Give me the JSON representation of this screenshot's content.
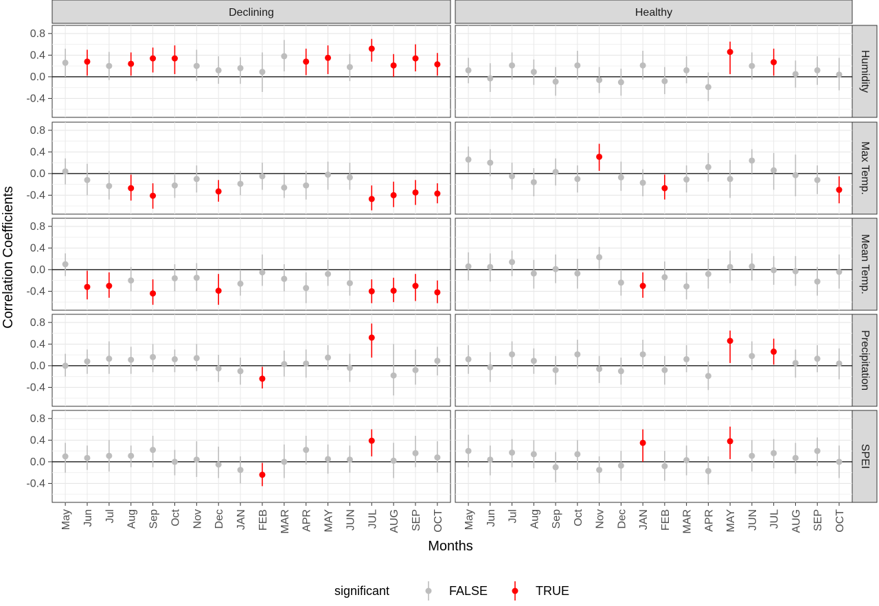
{
  "chart_data": {
    "type": "scatter",
    "title": "",
    "xlabel": "Months",
    "ylabel": "Correlation Coefficients",
    "ylim": [
      -0.75,
      0.95
    ],
    "yticks": [
      -0.4,
      0.0,
      0.4,
      0.8
    ],
    "ytick_labels": [
      "-0.4",
      "0.0",
      "0.4",
      "0.8"
    ],
    "grid": true,
    "columns": [
      "Declining",
      "Healthy"
    ],
    "rows": [
      "Humidity",
      "Max Temp.",
      "Mean Temp.",
      "Precipitation",
      "SPEI"
    ],
    "x_categories": [
      "May",
      "Jun",
      "Jul",
      "Aug",
      "Sep",
      "Oct",
      "Nov",
      "Dec",
      "JAN",
      "FEB",
      "MAR",
      "APR",
      "MAY",
      "JUN",
      "JUL",
      "AUG",
      "SEP",
      "OCT"
    ],
    "legend": {
      "title": "significant",
      "position": "bottom",
      "entries": [
        {
          "label": "FALSE",
          "color": "#bdbdbd"
        },
        {
          "label": "TRUE",
          "color": "#ff0000"
        }
      ]
    },
    "colors": {
      "false": "#bdbdbd",
      "true": "#ff0000",
      "strip": "#d9d9d9",
      "zero_line": "#000000"
    },
    "panels": {
      "Declining": {
        "Humidity": {
          "est": [
            0.26,
            0.28,
            0.2,
            0.24,
            0.34,
            0.34,
            0.2,
            0.12,
            0.16,
            0.09,
            0.38,
            0.28,
            0.35,
            0.18,
            0.52,
            0.21,
            0.34,
            0.23
          ],
          "lo": [
            0.0,
            0.02,
            -0.06,
            0.02,
            0.08,
            0.05,
            -0.08,
            -0.13,
            -0.13,
            -0.28,
            0.1,
            0.03,
            0.05,
            -0.08,
            0.28,
            0.0,
            0.1,
            0.02
          ],
          "hi": [
            0.52,
            0.5,
            0.46,
            0.45,
            0.54,
            0.58,
            0.5,
            0.38,
            0.36,
            0.45,
            0.68,
            0.52,
            0.58,
            0.42,
            0.7,
            0.42,
            0.6,
            0.44
          ],
          "sig": [
            false,
            true,
            false,
            true,
            true,
            true,
            false,
            false,
            false,
            false,
            false,
            true,
            true,
            false,
            true,
            true,
            true,
            true
          ]
        },
        "Max Temp.": {
          "est": [
            0.04,
            -0.12,
            -0.23,
            -0.27,
            -0.41,
            -0.22,
            -0.1,
            -0.33,
            -0.19,
            -0.05,
            -0.26,
            -0.22,
            -0.02,
            -0.07,
            -0.47,
            -0.4,
            -0.35,
            -0.37
          ],
          "lo": [
            -0.2,
            -0.4,
            -0.48,
            -0.5,
            -0.65,
            -0.45,
            -0.35,
            -0.52,
            -0.4,
            -0.3,
            -0.45,
            -0.48,
            -0.3,
            -0.3,
            -0.68,
            -0.62,
            -0.58,
            -0.55
          ],
          "hi": [
            0.28,
            0.18,
            0.05,
            -0.02,
            -0.18,
            0.0,
            0.15,
            -0.12,
            0.05,
            0.2,
            -0.02,
            0.05,
            0.22,
            0.2,
            -0.22,
            -0.15,
            -0.12,
            -0.18
          ],
          "sig": [
            false,
            false,
            false,
            true,
            true,
            false,
            false,
            true,
            false,
            false,
            false,
            false,
            false,
            false,
            true,
            true,
            true,
            true
          ]
        },
        "Mean Temp.": {
          "est": [
            0.1,
            -0.32,
            -0.3,
            -0.2,
            -0.44,
            -0.16,
            -0.15,
            -0.39,
            -0.26,
            -0.05,
            -0.17,
            -0.34,
            -0.08,
            -0.25,
            -0.4,
            -0.39,
            -0.3,
            -0.42
          ],
          "lo": [
            -0.12,
            -0.55,
            -0.52,
            -0.4,
            -0.65,
            -0.4,
            -0.4,
            -0.65,
            -0.48,
            -0.3,
            -0.4,
            -0.62,
            -0.3,
            -0.48,
            -0.62,
            -0.6,
            -0.58,
            -0.62
          ],
          "hi": [
            0.3,
            -0.02,
            -0.05,
            0.05,
            -0.18,
            0.1,
            0.12,
            -0.08,
            0.0,
            0.28,
            0.1,
            -0.05,
            0.18,
            0.0,
            -0.18,
            -0.15,
            -0.08,
            -0.2
          ],
          "sig": [
            false,
            true,
            true,
            false,
            true,
            false,
            false,
            true,
            false,
            false,
            false,
            false,
            false,
            false,
            true,
            true,
            true,
            true
          ]
        },
        "Precipitation": {
          "est": [
            0.0,
            0.08,
            0.13,
            0.11,
            0.16,
            0.12,
            0.14,
            -0.05,
            -0.1,
            -0.24,
            0.03,
            0.04,
            0.15,
            -0.04,
            0.52,
            -0.18,
            -0.08,
            0.09
          ],
          "lo": [
            -0.2,
            -0.15,
            -0.15,
            -0.15,
            -0.12,
            -0.12,
            -0.1,
            -0.3,
            -0.35,
            -0.42,
            -0.2,
            -0.22,
            -0.08,
            -0.3,
            0.15,
            -0.55,
            -0.35,
            -0.18
          ],
          "hi": [
            0.22,
            0.3,
            0.45,
            0.35,
            0.4,
            0.3,
            0.4,
            0.2,
            0.15,
            -0.02,
            0.28,
            0.3,
            0.38,
            0.22,
            0.78,
            0.4,
            0.3,
            0.35
          ],
          "sig": [
            false,
            false,
            false,
            false,
            false,
            false,
            false,
            false,
            false,
            true,
            false,
            false,
            false,
            false,
            true,
            false,
            false,
            false
          ]
        },
        "SPEI": {
          "est": [
            0.1,
            0.07,
            0.11,
            0.11,
            0.22,
            0.0,
            0.04,
            -0.05,
            -0.15,
            -0.24,
            0.0,
            0.22,
            0.05,
            0.04,
            0.39,
            0.02,
            0.16,
            0.08
          ],
          "lo": [
            -0.2,
            -0.15,
            -0.18,
            -0.1,
            -0.1,
            -0.25,
            -0.28,
            -0.3,
            -0.4,
            -0.45,
            -0.3,
            -0.05,
            -0.22,
            -0.2,
            0.1,
            -0.3,
            -0.1,
            -0.2
          ],
          "hi": [
            0.35,
            0.3,
            0.4,
            0.3,
            0.48,
            0.22,
            0.38,
            0.28,
            0.1,
            -0.02,
            0.32,
            0.48,
            0.32,
            0.3,
            0.6,
            0.35,
            0.48,
            0.38
          ],
          "sig": [
            false,
            false,
            false,
            false,
            false,
            false,
            false,
            false,
            false,
            true,
            false,
            false,
            false,
            false,
            true,
            false,
            false,
            false
          ]
        }
      },
      "Healthy": {
        "Humidity": {
          "est": [
            0.12,
            -0.03,
            0.21,
            0.09,
            -0.09,
            0.21,
            -0.06,
            -0.1,
            0.21,
            -0.08,
            0.12,
            -0.19,
            0.46,
            0.2,
            0.27,
            0.05,
            0.12,
            0.04
          ],
          "lo": [
            -0.12,
            -0.28,
            -0.05,
            -0.15,
            -0.35,
            -0.05,
            -0.3,
            -0.35,
            -0.05,
            -0.32,
            -0.12,
            -0.45,
            0.05,
            -0.05,
            0.02,
            -0.2,
            -0.15,
            -0.25
          ],
          "hi": [
            0.35,
            0.25,
            0.45,
            0.32,
            0.18,
            0.48,
            0.18,
            0.15,
            0.48,
            0.18,
            0.38,
            0.08,
            0.65,
            0.45,
            0.52,
            0.3,
            0.38,
            0.35
          ],
          "sig": [
            false,
            false,
            false,
            false,
            false,
            false,
            false,
            false,
            false,
            false,
            false,
            false,
            true,
            false,
            true,
            false,
            false,
            false
          ]
        },
        "Max Temp.": {
          "est": [
            0.26,
            0.2,
            -0.05,
            -0.16,
            0.03,
            -0.1,
            0.31,
            -0.07,
            -0.17,
            -0.27,
            -0.11,
            0.12,
            -0.1,
            0.24,
            0.06,
            -0.03,
            -0.12,
            -0.3
          ],
          "lo": [
            0.02,
            -0.05,
            -0.3,
            -0.42,
            -0.22,
            -0.35,
            0.05,
            -0.32,
            -0.42,
            -0.48,
            -0.35,
            -0.15,
            -0.45,
            0.0,
            -0.3,
            -0.42,
            -0.38,
            -0.55
          ],
          "hi": [
            0.5,
            0.45,
            0.2,
            0.1,
            0.28,
            0.15,
            0.55,
            0.22,
            0.08,
            -0.02,
            0.15,
            0.38,
            0.25,
            0.45,
            0.38,
            0.35,
            0.15,
            -0.05
          ],
          "sig": [
            false,
            false,
            false,
            false,
            false,
            false,
            true,
            false,
            false,
            true,
            false,
            false,
            false,
            false,
            false,
            false,
            false,
            true
          ]
        },
        "Mean Temp.": {
          "est": [
            0.06,
            0.05,
            0.14,
            -0.07,
            0.01,
            -0.07,
            0.23,
            -0.24,
            -0.3,
            -0.14,
            -0.31,
            -0.08,
            0.05,
            0.06,
            -0.01,
            -0.03,
            -0.22,
            -0.04
          ],
          "lo": [
            -0.2,
            -0.22,
            -0.12,
            -0.35,
            -0.25,
            -0.35,
            0.02,
            -0.48,
            -0.52,
            -0.4,
            -0.55,
            -0.35,
            -0.25,
            -0.2,
            -0.28,
            -0.3,
            -0.48,
            -0.35
          ],
          "hi": [
            0.32,
            0.3,
            0.35,
            0.18,
            0.28,
            0.2,
            0.42,
            0.0,
            -0.05,
            0.15,
            -0.05,
            0.2,
            0.35,
            0.3,
            0.25,
            0.25,
            0.05,
            0.28
          ],
          "sig": [
            false,
            false,
            false,
            false,
            false,
            false,
            false,
            false,
            true,
            false,
            false,
            false,
            false,
            false,
            false,
            false,
            false,
            false
          ]
        },
        "Precipitation": {
          "est": [
            0.12,
            -0.03,
            0.21,
            0.09,
            -0.08,
            0.21,
            -0.06,
            -0.1,
            0.21,
            -0.08,
            0.12,
            -0.19,
            0.46,
            0.18,
            0.26,
            0.05,
            0.13,
            0.04
          ],
          "lo": [
            -0.15,
            -0.3,
            -0.05,
            -0.15,
            -0.35,
            -0.05,
            -0.32,
            -0.35,
            -0.05,
            -0.35,
            -0.12,
            -0.45,
            0.05,
            -0.08,
            0.02,
            -0.22,
            -0.12,
            -0.25
          ],
          "hi": [
            0.38,
            0.25,
            0.45,
            0.32,
            0.18,
            0.48,
            0.18,
            0.15,
            0.48,
            0.18,
            0.38,
            0.08,
            0.65,
            0.45,
            0.5,
            0.3,
            0.38,
            0.32
          ],
          "sig": [
            false,
            false,
            false,
            false,
            false,
            false,
            false,
            false,
            false,
            false,
            false,
            false,
            true,
            false,
            true,
            false,
            false,
            false
          ]
        },
        "SPEI": {
          "est": [
            0.2,
            0.04,
            0.17,
            0.14,
            -0.1,
            0.14,
            -0.15,
            -0.07,
            0.35,
            -0.08,
            0.03,
            -0.17,
            0.38,
            0.11,
            0.16,
            0.07,
            0.2,
            0.0
          ],
          "lo": [
            -0.1,
            -0.25,
            -0.1,
            -0.12,
            -0.38,
            -0.15,
            -0.4,
            -0.35,
            0.0,
            -0.35,
            -0.25,
            -0.42,
            0.05,
            -0.18,
            -0.12,
            -0.22,
            -0.08,
            -0.3
          ],
          "hi": [
            0.5,
            0.3,
            0.42,
            0.4,
            0.18,
            0.4,
            0.1,
            0.2,
            0.6,
            0.2,
            0.3,
            0.1,
            0.65,
            0.4,
            0.42,
            0.35,
            0.45,
            0.3
          ],
          "sig": [
            false,
            false,
            false,
            false,
            false,
            false,
            false,
            false,
            true,
            false,
            false,
            false,
            true,
            false,
            false,
            false,
            false,
            false
          ]
        }
      }
    }
  }
}
